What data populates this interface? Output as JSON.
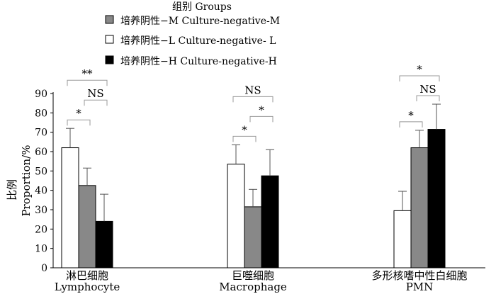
{
  "chart_data": {
    "type": "bar",
    "ylabel_cn": "比例",
    "ylabel": "Proportion/%",
    "ylim": [
      0,
      90
    ],
    "yticks": [
      0,
      10,
      20,
      30,
      40,
      50,
      60,
      70,
      80,
      90
    ],
    "legend": {
      "title": "组别 Groups",
      "placement": "top-center",
      "entries": [
        {
          "label": "培养阴性−M Culture-negative-M",
          "color": "#888888"
        },
        {
          "label": "培养阴性−L Culture-negative- L",
          "color": "#ffffff"
        },
        {
          "label": "培养阴性−H Culture-negative-H",
          "color": "#000000"
        }
      ]
    },
    "groups": [
      {
        "label_cn": "淋巴细胞",
        "label_en": "Lymphocyte",
        "bars": [
          {
            "series": "L",
            "color": "#ffffff",
            "value": 62,
            "err": 10
          },
          {
            "series": "M",
            "color": "#888888",
            "value": 42.5,
            "err": 9
          },
          {
            "series": "H",
            "color": "#000000",
            "value": 24,
            "err": 14
          }
        ],
        "brackets": [
          {
            "from": 0,
            "to": 1,
            "text": "*"
          },
          {
            "from": 0,
            "to": 2,
            "text": "**"
          },
          {
            "from": 1,
            "to": 2,
            "text": "NS"
          }
        ]
      },
      {
        "label_cn": "巨噬细胞",
        "label_en": "Macrophage",
        "bars": [
          {
            "series": "L",
            "color": "#ffffff",
            "value": 53.5,
            "err": 10
          },
          {
            "series": "M",
            "color": "#888888",
            "value": 31.5,
            "err": 9
          },
          {
            "series": "H",
            "color": "#000000",
            "value": 47.5,
            "err": 13.5
          }
        ],
        "brackets": [
          {
            "from": 0,
            "to": 1,
            "text": "*"
          },
          {
            "from": 1,
            "to": 2,
            "text": "*"
          },
          {
            "from": 0,
            "to": 2,
            "text": "NS"
          }
        ]
      },
      {
        "label_cn": "多形核嗜中性白细胞",
        "label_en": "PMN",
        "bars": [
          {
            "series": "L",
            "color": "#ffffff",
            "value": 29.5,
            "err": 10
          },
          {
            "series": "M",
            "color": "#888888",
            "value": 62,
            "err": 9
          },
          {
            "series": "H",
            "color": "#000000",
            "value": 71.5,
            "err": 13
          }
        ],
        "brackets": [
          {
            "from": 0,
            "to": 1,
            "text": "*"
          },
          {
            "from": 1,
            "to": 2,
            "text": "NS"
          },
          {
            "from": 0,
            "to": 2,
            "text": "*"
          }
        ]
      }
    ]
  }
}
